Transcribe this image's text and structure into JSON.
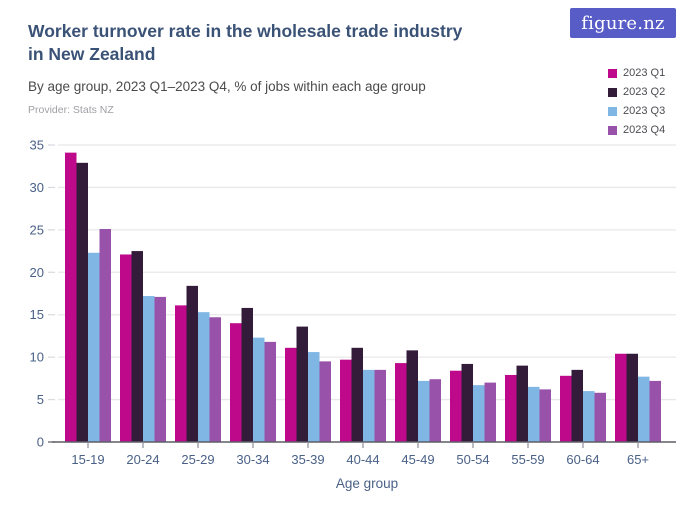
{
  "header": {
    "title_lines": [
      "Worker turnover rate in the wholesale trade industry",
      "in New Zealand"
    ],
    "subtitle": "By age group, 2023 Q1–2023 Q4, % of jobs within each age group",
    "provider": "Provider: Stats NZ"
  },
  "logo": {
    "text": "figure.nz",
    "background": "#585cc7",
    "text_color": "#ffffff"
  },
  "chart_data": {
    "type": "bar",
    "title": "Worker turnover rate in the wholesale trade industry in New Zealand",
    "subtitle": "By age group, 2023 Q1–2023 Q4, % of jobs within each age group",
    "categories": [
      "15-19",
      "20-24",
      "25-29",
      "30-34",
      "35-39",
      "40-44",
      "45-49",
      "50-54",
      "55-59",
      "60-64",
      "65+"
    ],
    "series": [
      {
        "name": "2023 Q1",
        "color": "#be0a8a",
        "values": [
          34.1,
          22.1,
          16.1,
          14.0,
          11.1,
          9.7,
          9.3,
          8.4,
          7.9,
          7.8,
          10.4
        ]
      },
      {
        "name": "2023 Q2",
        "color": "#331c3a",
        "values": [
          32.9,
          22.5,
          18.4,
          15.8,
          13.6,
          11.1,
          10.8,
          9.2,
          9.0,
          8.5,
          10.4
        ]
      },
      {
        "name": "2023 Q3",
        "color": "#80b6e3",
        "values": [
          22.3,
          17.2,
          15.3,
          12.3,
          10.6,
          8.5,
          7.2,
          6.7,
          6.5,
          6.0,
          7.7
        ]
      },
      {
        "name": "2023 Q4",
        "color": "#9852aa",
        "values": [
          25.1,
          17.1,
          14.7,
          11.8,
          9.5,
          8.5,
          7.4,
          7.0,
          6.2,
          5.8,
          7.2
        ]
      }
    ],
    "xlabel": "Age group",
    "ylabel": "",
    "ylim": [
      0,
      35
    ],
    "yticks": [
      0,
      5,
      10,
      15,
      20,
      25,
      30,
      35
    ],
    "grid": true,
    "legend_position": "top-right",
    "axis_label_color": "#4a6187",
    "gridline_color": "#e8e8eb",
    "baseline_color": "#5b5e66"
  }
}
